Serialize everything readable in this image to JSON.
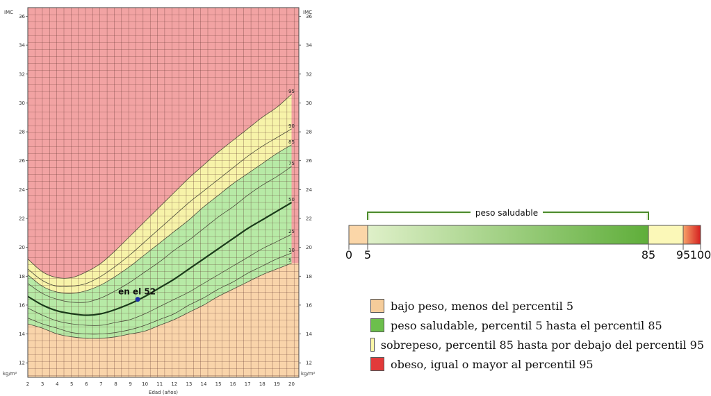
{
  "chart_data": {
    "type": "line",
    "y_axis_label_top": "IMC",
    "y_units": "kg/m²",
    "xlabel": "Edad (años)",
    "xlim": [
      2,
      20.5
    ],
    "ylim": [
      11,
      36.6
    ],
    "x_ticks": [
      2,
      3,
      4,
      5,
      6,
      7,
      8,
      9,
      10,
      11,
      12,
      13,
      14,
      15,
      16,
      17,
      18,
      19,
      20
    ],
    "y_ticks": [
      12,
      14,
      16,
      18,
      20,
      22,
      24,
      26,
      28,
      30,
      32,
      34,
      36
    ],
    "ages": [
      2,
      3,
      4,
      5,
      6,
      7,
      8,
      9,
      10,
      11,
      12,
      13,
      14,
      15,
      16,
      17,
      18,
      19,
      20
    ],
    "series": [
      {
        "name": "5",
        "values": [
          14.7,
          14.4,
          14.0,
          13.8,
          13.7,
          13.7,
          13.8,
          14.0,
          14.2,
          14.6,
          15.0,
          15.5,
          16.0,
          16.6,
          17.1,
          17.6,
          18.1,
          18.5,
          18.9
        ]
      },
      {
        "name": "10",
        "values": [
          15.1,
          14.7,
          14.4,
          14.1,
          14.0,
          14.0,
          14.1,
          14.3,
          14.6,
          15.0,
          15.4,
          16.0,
          16.5,
          17.1,
          17.6,
          18.2,
          18.7,
          19.2,
          19.6
        ]
      },
      {
        "name": "25",
        "values": [
          15.8,
          15.3,
          14.9,
          14.7,
          14.6,
          14.6,
          14.8,
          15.0,
          15.4,
          15.9,
          16.4,
          16.9,
          17.5,
          18.1,
          18.7,
          19.3,
          19.9,
          20.4,
          20.9
        ]
      },
      {
        "name": "50",
        "values": [
          16.6,
          16.0,
          15.6,
          15.4,
          15.3,
          15.4,
          15.7,
          16.1,
          16.6,
          17.2,
          17.8,
          18.5,
          19.2,
          19.9,
          20.6,
          21.3,
          21.9,
          22.5,
          23.1
        ]
      },
      {
        "name": "75",
        "values": [
          17.5,
          16.8,
          16.4,
          16.2,
          16.2,
          16.5,
          17.0,
          17.6,
          18.3,
          19.0,
          19.8,
          20.5,
          21.3,
          22.1,
          22.8,
          23.6,
          24.3,
          24.9,
          25.6
        ]
      },
      {
        "name": "85",
        "values": [
          18.1,
          17.3,
          16.9,
          16.8,
          17.0,
          17.4,
          18.0,
          18.7,
          19.5,
          20.3,
          21.1,
          21.9,
          22.8,
          23.6,
          24.4,
          25.1,
          25.8,
          26.5,
          27.1
        ]
      },
      {
        "name": "90",
        "values": [
          18.5,
          17.7,
          17.3,
          17.3,
          17.5,
          18.0,
          18.7,
          19.5,
          20.4,
          21.3,
          22.2,
          23.1,
          23.9,
          24.7,
          25.5,
          26.3,
          27.0,
          27.6,
          28.2
        ]
      },
      {
        "name": "95",
        "values": [
          19.2,
          18.3,
          17.9,
          17.9,
          18.3,
          18.9,
          19.8,
          20.8,
          21.8,
          22.8,
          23.8,
          24.8,
          25.7,
          26.6,
          27.4,
          28.2,
          29.0,
          29.7,
          30.6
        ]
      }
    ],
    "highlight_series": "50",
    "point": {
      "x": 9.5,
      "y": 16.4,
      "label": "en el 52"
    },
    "percentile_bar": {
      "ticks": [
        "0",
        "5",
        "85",
        "95",
        "100"
      ],
      "tick_values": [
        0,
        5,
        85,
        95,
        100
      ],
      "bracket_label": "peso saludable"
    },
    "legend": [
      {
        "label": "bajo peso, menos del percentil 5",
        "color": "#f5cc9a"
      },
      {
        "label": "peso saludable, percentil 5 hasta el percentil 85",
        "color": "#6cbf4c"
      },
      {
        "label": "sobrepeso, percentil 85 hasta por debajo del percentil 95",
        "color": "#fbf6a6"
      },
      {
        "label": "obeso, igual o mayor al percentil 95",
        "color": "#e23a3a"
      }
    ],
    "colors": {
      "underweight": "#f9d4aa",
      "healthy": "#b7eaa6",
      "overweight": "#f7f3a9",
      "obese": "#f2a3a3",
      "grid": "#5a2f2a",
      "median": "#1a3a1a",
      "point": "#1c2fa8"
    }
  }
}
